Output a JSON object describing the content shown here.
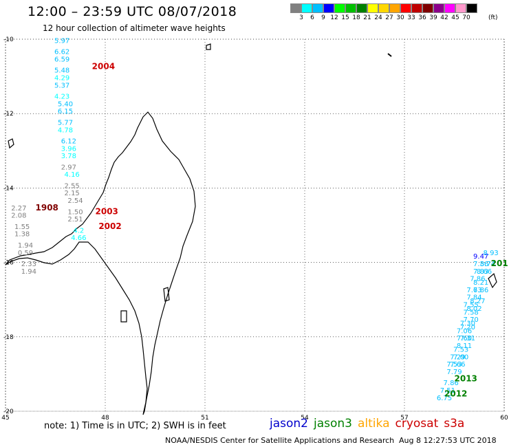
{
  "header": {
    "title": "12:00 – 23:59 UTC 08/07/2018",
    "subtitle": "12 hour collection of altimeter wave heights"
  },
  "legend": {
    "colors": [
      "#808080",
      "#00ffff",
      "#00bfff",
      "#0000ff",
      "#00ff00",
      "#00c000",
      "#008000",
      "#ffff00",
      "#ffd700",
      "#ffa500",
      "#ff0000",
      "#c00000",
      "#800000",
      "#8b008b",
      "#ff00ff",
      "#ff99cc",
      "#000000"
    ],
    "labels": [
      "3",
      "6",
      "9",
      "12",
      "15",
      "18",
      "21",
      "24",
      "27",
      "30",
      "33",
      "36",
      "39",
      "42",
      "45",
      "70"
    ],
    "units": "(ft)"
  },
  "axes": {
    "lat_labels": [
      "-10",
      "-12",
      "-14",
      "-16",
      "-18",
      "-20"
    ],
    "lon_labels": [
      "45",
      "48",
      "51",
      "54",
      "57",
      "60"
    ]
  },
  "chart_data": {
    "type": "scatter",
    "xlim": [
      45,
      60
    ],
    "ylim": [
      -20,
      -10
    ],
    "grid": true,
    "time_labels": [
      {
        "text": "2004",
        "lon": 47.6,
        "lat": -10.8,
        "color": "#cc0000"
      },
      {
        "text": "1908",
        "lon": 45.9,
        "lat": -14.6,
        "color": "#800000"
      },
      {
        "text": "2003",
        "lon": 47.7,
        "lat": -14.7,
        "color": "#cc0000"
      },
      {
        "text": "2002",
        "lon": 47.8,
        "lat": -15.1,
        "color": "#cc0000"
      },
      {
        "text": "201",
        "lon": 59.6,
        "lat": -16.1,
        "color": "#008000"
      },
      {
        "text": "2013",
        "lon": 58.5,
        "lat": -19.2,
        "color": "#008000"
      },
      {
        "text": "2012",
        "lon": 58.2,
        "lat": -19.6,
        "color": "#008000"
      }
    ],
    "series": [
      {
        "name": "cryosat track A",
        "values": [
          {
            "lon": 46.7,
            "lat": -10.1,
            "v": "5.97",
            "color": "#00bfff"
          },
          {
            "lon": 46.7,
            "lat": -10.4,
            "v": "6.62",
            "color": "#00bfff"
          },
          {
            "lon": 46.7,
            "lat": -10.6,
            "v": "6.59",
            "color": "#00bfff"
          },
          {
            "lon": 46.7,
            "lat": -10.9,
            "v": "5.48",
            "color": "#00bfff"
          },
          {
            "lon": 46.7,
            "lat": -11.1,
            "v": "4.29",
            "color": "#00ffff"
          },
          {
            "lon": 46.7,
            "lat": -11.3,
            "v": "5.37",
            "color": "#00bfff"
          },
          {
            "lon": 46.7,
            "lat": -11.6,
            "v": "4.23",
            "color": "#00ffff"
          },
          {
            "lon": 46.8,
            "lat": -11.8,
            "v": "5.40",
            "color": "#00bfff"
          },
          {
            "lon": 46.8,
            "lat": -12.0,
            "v": "6.15",
            "color": "#00bfff"
          },
          {
            "lon": 46.8,
            "lat": -12.3,
            "v": "5.77",
            "color": "#00bfff"
          },
          {
            "lon": 46.8,
            "lat": -12.5,
            "v": "4.78",
            "color": "#00ffff"
          },
          {
            "lon": 46.9,
            "lat": -12.8,
            "v": "6.12",
            "color": "#00bfff"
          },
          {
            "lon": 46.9,
            "lat": -13.0,
            "v": "3.96",
            "color": "#00ffff"
          },
          {
            "lon": 46.9,
            "lat": -13.2,
            "v": "3.78",
            "color": "#00ffff"
          },
          {
            "lon": 46.9,
            "lat": -13.5,
            "v": "2.97",
            "color": "#808080"
          },
          {
            "lon": 47.0,
            "lat": -13.7,
            "v": "4.16",
            "color": "#00ffff"
          },
          {
            "lon": 47.0,
            "lat": -14.0,
            "v": "2.55",
            "color": "#808080"
          },
          {
            "lon": 47.0,
            "lat": -14.2,
            "v": "2.15",
            "color": "#808080"
          },
          {
            "lon": 47.1,
            "lat": -14.4,
            "v": "2.54",
            "color": "#808080"
          },
          {
            "lon": 47.1,
            "lat": -14.7,
            "v": "1.50",
            "color": "#808080"
          },
          {
            "lon": 47.1,
            "lat": -14.9,
            "v": "2.51",
            "color": "#808080"
          },
          {
            "lon": 47.2,
            "lat": -15.2,
            "v": "4.2",
            "color": "#00ffff"
          },
          {
            "lon": 47.2,
            "lat": -15.4,
            "v": "4.66",
            "color": "#00ffff"
          }
        ]
      },
      {
        "name": "cryosat track B",
        "values": [
          {
            "lon": 45.4,
            "lat": -14.6,
            "v": "2.27",
            "color": "#808080"
          },
          {
            "lon": 45.4,
            "lat": -14.8,
            "v": "2.08",
            "color": "#808080"
          },
          {
            "lon": 45.5,
            "lat": -15.1,
            "v": "1.55",
            "color": "#808080"
          },
          {
            "lon": 45.5,
            "lat": -15.3,
            "v": "1.38",
            "color": "#808080"
          },
          {
            "lon": 45.6,
            "lat": -15.6,
            "v": "1.94",
            "color": "#808080"
          },
          {
            "lon": 45.6,
            "lat": -15.8,
            "v": "0.59",
            "color": "#808080"
          },
          {
            "lon": 45.7,
            "lat": -16.1,
            "v": "2.33",
            "color": "#808080"
          },
          {
            "lon": 45.7,
            "lat": -16.3,
            "v": "1.94",
            "color": "#808080"
          }
        ]
      },
      {
        "name": "jason3 track C",
        "values": [
          {
            "lon": 59.3,
            "lat": -15.9,
            "v": "9.47",
            "color": "#0000ff"
          },
          {
            "lon": 59.3,
            "lat": -16.1,
            "v": "7.36",
            "color": "#00bfff"
          },
          {
            "lon": 59.3,
            "lat": -16.3,
            "v": "7.83",
            "color": "#00bfff"
          },
          {
            "lon": 59.2,
            "lat": -16.5,
            "v": "7.86",
            "color": "#00bfff"
          },
          {
            "lon": 59.1,
            "lat": -16.8,
            "v": "7.63",
            "color": "#00bfff"
          },
          {
            "lon": 59.1,
            "lat": -17.0,
            "v": "7.84",
            "color": "#00bfff"
          },
          {
            "lon": 59.0,
            "lat": -17.2,
            "v": "7.55",
            "color": "#00bfff"
          },
          {
            "lon": 59.0,
            "lat": -17.4,
            "v": "7.58",
            "color": "#00bfff"
          },
          {
            "lon": 58.9,
            "lat": -17.7,
            "v": "7.30",
            "color": "#00bfff"
          },
          {
            "lon": 58.8,
            "lat": -17.9,
            "v": "7.06",
            "color": "#00bfff"
          },
          {
            "lon": 58.8,
            "lat": -18.1,
            "v": "7.60",
            "color": "#00bfff"
          },
          {
            "lon": 58.7,
            "lat": -18.4,
            "v": "7.53",
            "color": "#00bfff"
          },
          {
            "lon": 58.6,
            "lat": -18.6,
            "v": "7.29",
            "color": "#00bfff"
          },
          {
            "lon": 58.5,
            "lat": -18.8,
            "v": "7.53",
            "color": "#00bfff"
          },
          {
            "lon": 58.5,
            "lat": -19.0,
            "v": "7.79",
            "color": "#00bfff"
          },
          {
            "lon": 58.4,
            "lat": -19.3,
            "v": "7.86",
            "color": "#00bfff"
          },
          {
            "lon": 58.3,
            "lat": -19.5,
            "v": "7.51",
            "color": "#00bfff"
          },
          {
            "lon": 58.2,
            "lat": -19.7,
            "v": "6.75",
            "color": "#00bfff"
          }
        ]
      },
      {
        "name": "jason3 track D",
        "values": [
          {
            "lon": 59.6,
            "lat": -15.8,
            "v": "8.93",
            "color": "#00bfff"
          },
          {
            "lon": 59.5,
            "lat": -16.1,
            "v": "8.74",
            "color": "#00bfff"
          },
          {
            "lon": 59.4,
            "lat": -16.3,
            "v": "8.66",
            "color": "#00bfff"
          },
          {
            "lon": 59.3,
            "lat": -16.6,
            "v": "8.21",
            "color": "#00bfff"
          },
          {
            "lon": 59.3,
            "lat": -16.8,
            "v": "7.86",
            "color": "#00bfff"
          },
          {
            "lon": 59.2,
            "lat": -17.1,
            "v": "8.27",
            "color": "#00bfff"
          },
          {
            "lon": 59.1,
            "lat": -17.3,
            "v": "8.02",
            "color": "#00bfff"
          },
          {
            "lon": 59.0,
            "lat": -17.6,
            "v": "7.70",
            "color": "#00bfff"
          },
          {
            "lon": 58.9,
            "lat": -17.8,
            "v": "7.20",
            "color": "#00bfff"
          },
          {
            "lon": 58.9,
            "lat": -18.1,
            "v": "7.31",
            "color": "#00bfff"
          },
          {
            "lon": 58.8,
            "lat": -18.3,
            "v": "8.11",
            "color": "#00bfff"
          },
          {
            "lon": 58.7,
            "lat": -18.6,
            "v": "7.00",
            "color": "#00bfff"
          },
          {
            "lon": 58.6,
            "lat": -18.8,
            "v": "7.66",
            "color": "#00bfff"
          }
        ]
      }
    ]
  },
  "sat_legend": [
    {
      "name": "jason2",
      "color": "#0000cc"
    },
    {
      "name": "jason3",
      "color": "#008000"
    },
    {
      "name": "altika",
      "color": "#ffa500"
    },
    {
      "name": "cryosat",
      "color": "#cc0000"
    },
    {
      "name": "s3a",
      "color": "#cc0000"
    }
  ],
  "footer": {
    "note": "note:  1) Time is in UTC; 2) SWH is in feet",
    "credit": "NOAA/NESDIS Center for Satellite Applications and Research",
    "stamp": "Aug  8 12:27:53 UTC 2018"
  }
}
